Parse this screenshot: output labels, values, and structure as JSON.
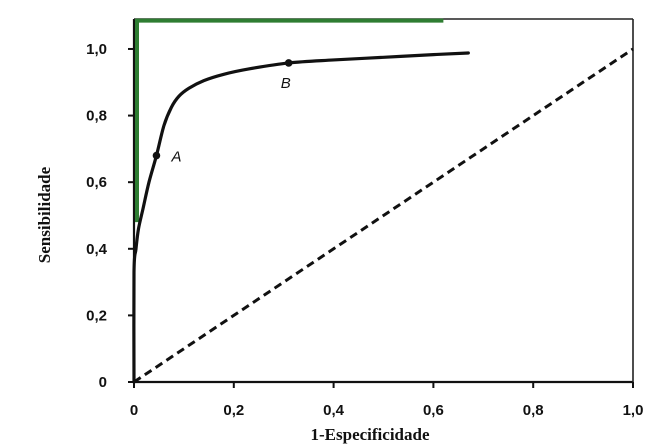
{
  "chart_data": {
    "type": "line",
    "xlabel": "1-Especificidade",
    "ylabel": "Sensibilidade",
    "xlim": [
      0,
      1.0
    ],
    "ylim": [
      0,
      1.09
    ],
    "grid": false,
    "x_ticks": [
      {
        "value": 0,
        "label": "0"
      },
      {
        "value": 0.2,
        "label": "0,2"
      },
      {
        "value": 0.4,
        "label": "0,4"
      },
      {
        "value": 0.6,
        "label": "0,6"
      },
      {
        "value": 0.8,
        "label": "0,8"
      },
      {
        "value": 1.0,
        "label": "1,0"
      }
    ],
    "y_ticks": [
      {
        "value": 0,
        "label": "0"
      },
      {
        "value": 0.2,
        "label": "0,2"
      },
      {
        "value": 0.4,
        "label": "0,4"
      },
      {
        "value": 0.6,
        "label": "0,6"
      },
      {
        "value": 0.8,
        "label": "0,8"
      },
      {
        "value": 1.0,
        "label": "1,0"
      }
    ],
    "series": [
      {
        "color": "#111111",
        "dashed": false,
        "smooth": true,
        "points": [
          [
            0,
            0
          ],
          [
            0,
            0.33
          ],
          [
            0.004,
            0.4
          ],
          [
            0.009,
            0.46
          ],
          [
            0.018,
            0.52
          ],
          [
            0.03,
            0.6
          ],
          [
            0.045,
            0.68
          ],
          [
            0.06,
            0.77
          ],
          [
            0.075,
            0.825
          ],
          [
            0.09,
            0.858
          ],
          [
            0.11,
            0.882
          ],
          [
            0.14,
            0.905
          ],
          [
            0.18,
            0.924
          ],
          [
            0.23,
            0.94
          ],
          [
            0.31,
            0.958
          ],
          [
            0.4,
            0.967
          ],
          [
            0.5,
            0.975
          ],
          [
            0.6,
            0.983
          ],
          [
            0.67,
            0.988
          ]
        ]
      },
      {
        "color": "#111111",
        "dashed": true,
        "smooth": false,
        "points": [
          [
            0,
            0
          ],
          [
            1.0,
            1.0
          ]
        ]
      }
    ],
    "annotations": [
      {
        "label": "A",
        "x": 0.045,
        "y": 0.68,
        "label_position": "right"
      },
      {
        "label": "B",
        "x": 0.31,
        "y": 0.958,
        "label_position": "below"
      }
    ],
    "highlight": {
      "color": "#2e7d32",
      "points": [
        [
          0.006,
          0.48
        ],
        [
          0.006,
          1.085
        ],
        [
          0.62,
          1.085
        ]
      ]
    }
  }
}
